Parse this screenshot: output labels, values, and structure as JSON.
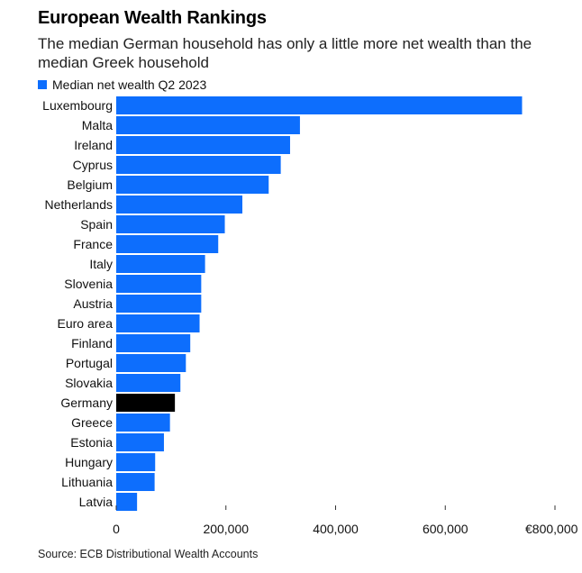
{
  "title": "European Wealth Rankings",
  "subtitle": "The median German household has only a little more net wealth than the median Greek household",
  "source": "Source: ECB Distributional Wealth Accounts",
  "colors": {
    "bar": "#0d6efd",
    "highlight": "#000000"
  },
  "chart_data": {
    "type": "bar",
    "orientation": "horizontal",
    "categories": [
      "Luxembourg",
      "Malta",
      "Ireland",
      "Cyprus",
      "Belgium",
      "Netherlands",
      "Spain",
      "France",
      "Italy",
      "Slovenia",
      "Austria",
      "Euro area",
      "Finland",
      "Portugal",
      "Slovakia",
      "Germany",
      "Greece",
      "Estonia",
      "Hungary",
      "Lithuania",
      "Latvia"
    ],
    "series": [
      {
        "name": "Median net wealth Q2 2023",
        "values": [
          740000,
          335000,
          317000,
          300000,
          278000,
          230000,
          198000,
          186000,
          162000,
          155000,
          155000,
          152000,
          135000,
          127000,
          117000,
          107000,
          98000,
          87000,
          71000,
          70000,
          38000
        ]
      }
    ],
    "highlight": "Germany",
    "xlim": [
      0,
      800000
    ],
    "xticks": [
      0,
      200000,
      400000,
      600000,
      800000
    ],
    "xtick_labels": [
      "0",
      "200,000",
      "400,000",
      "600,000",
      "€800,000"
    ],
    "legend_position": "top-left",
    "grid": false
  }
}
